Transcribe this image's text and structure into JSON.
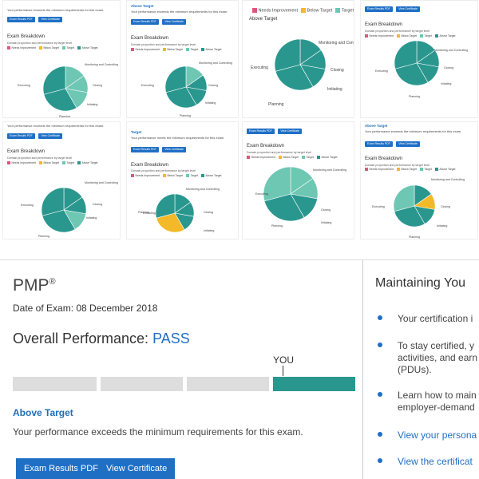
{
  "colors": {
    "needs_improvement": "#e0557a",
    "below_target": "#f3b929",
    "target": "#6dc7b3",
    "above_target": "#2a978f",
    "primary": "#1f6fc5"
  },
  "thumbs": [
    {
      "performance_text": "Your performance exceeds the minimum requirements for this exam.",
      "heading": "",
      "buttons": [
        "Exam Results PDF",
        "View Certificate"
      ],
      "breakdown_title": "Exam Breakdown",
      "breakdown_desc": "Domain proportion and performance by target level",
      "legend": [
        "Needs Improvement",
        "Below Target",
        "Target",
        "Above Target"
      ],
      "pie_labels": [
        "Monitoring and Controlling",
        "Closing",
        "Initiating",
        "Planning",
        "Executing"
      ]
    },
    {
      "performance_text": "Your performance exceeds the minimum requirements for this exam.",
      "heading": "Above Target",
      "buttons": [
        "Exam Results PDF",
        "View Certificate"
      ],
      "breakdown_title": "Exam Breakdown",
      "breakdown_desc": "Domain proportion and performance by target level",
      "legend": [
        "Needs Improvement",
        "Below Target",
        "Target",
        "Above Target"
      ],
      "pie_labels": [
        "Monitoring and Controlling",
        "Closing",
        "Initiating",
        "Planning",
        "Executing"
      ]
    },
    {
      "performance_text": "",
      "heading": "",
      "buttons": [],
      "breakdown_title": "",
      "breakdown_desc": "",
      "legend": [
        "Needs Improvement",
        "Below Target",
        "Target",
        "Above Target"
      ],
      "pie_labels": [
        "Monitoring and Controlling",
        "Closing",
        "Initiating",
        "Planning",
        "Executing"
      ]
    },
    {
      "performance_text": "",
      "heading": "",
      "buttons": [
        "Exam Results PDF",
        "View Certificate"
      ],
      "breakdown_title": "Exam Breakdown",
      "breakdown_desc": "Domain proportion and performance by target level",
      "legend": [
        "Needs Improvement",
        "Below Target",
        "Target",
        "Above Target"
      ],
      "pie_labels": [
        "Monitoring and Controlling",
        "Closing",
        "Initiating",
        "Planning",
        "Executing"
      ]
    },
    {
      "performance_text": "Your performance exceeds the minimum requirements for this exam.",
      "heading": "",
      "buttons": [
        "Exam Results PDF",
        "View Certificate"
      ],
      "breakdown_title": "Exam Breakdown",
      "breakdown_desc": "Domain proportion and performance by target level",
      "legend": [
        "Needs Improvement",
        "Below Target",
        "Target",
        "Above Target"
      ],
      "pie_labels": [
        "Monitoring and Controlling",
        "Closing",
        "Initiating",
        "Planning",
        "Executing"
      ]
    },
    {
      "performance_text": "Your performance meets the minimum requirements for this exam.",
      "heading": "Target",
      "buttons": [
        "Exam Results PDF",
        "View Certificate"
      ],
      "breakdown_title": "Exam Breakdown",
      "breakdown_desc": "Domain proportion and performance by target level",
      "legend": [
        "Needs Improvement",
        "Below Target",
        "Target",
        "Above Target"
      ],
      "pie_labels": [
        "Monitoring and Controlling",
        "Closing",
        "Initiating",
        "Planning",
        "Executing"
      ]
    },
    {
      "performance_text": "",
      "heading": "",
      "buttons": [
        "Exam Results PDF",
        "View Certificate"
      ],
      "breakdown_title": "Exam Breakdown",
      "breakdown_desc": "Domain proportion and performance by target level",
      "legend": [
        "Needs Improvement",
        "Below Target",
        "Target",
        "Above Target"
      ],
      "pie_labels": [
        "Monitoring and Controlling",
        "Closing",
        "Initiating",
        "Planning",
        "Executing"
      ]
    },
    {
      "performance_text": "Your performance exceeds the minimum requirements for this exam.",
      "heading": "Above Target",
      "buttons": [
        "Exam Results PDF",
        "View Certificate"
      ],
      "breakdown_title": "Exam Breakdown",
      "breakdown_desc": "Domain proportion and performance by target level",
      "legend": [
        "Needs Improvement",
        "Below Target",
        "Target",
        "Above Target"
      ],
      "pie_labels": [
        "Monitoring and Controlling",
        "Closing",
        "Initiating",
        "Planning",
        "Executing"
      ]
    }
  ],
  "main": {
    "certification": "PMP",
    "reg_mark": "®",
    "exam_date": "Date of Exam: 08 December 2018",
    "overall_label": "Overall Performance: ",
    "overall_result": "PASS",
    "you_label": "YOU",
    "result_level": "Above Target",
    "result_text": "Your performance exceeds the minimum requirements for this exam.",
    "btn_pdf": "Exam Results PDF",
    "btn_cert": "View Certificate"
  },
  "side": {
    "title": "Maintaining You",
    "b1": "Your certification i",
    "b2a": "To stay certified, y",
    "b2b": "activities, and earn",
    "b2c": "(PDUs).",
    "b3a": "Learn how to main",
    "b3b": "employer-demand",
    "b4": "View your persona",
    "b5": "View the certificat"
  }
}
